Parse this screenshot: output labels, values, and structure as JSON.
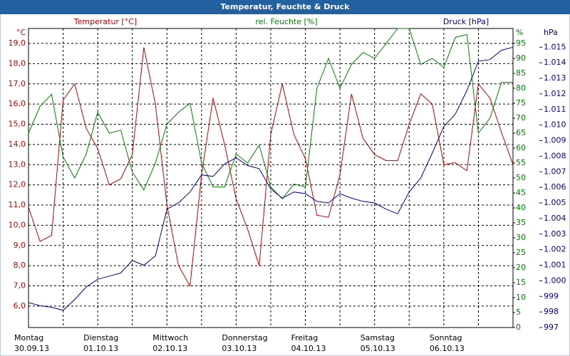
{
  "chart_data": {
    "type": "line",
    "title": "Temperatur, Feuchte & Druck",
    "ylabel": "Temperatur [°C]",
    "yunit": "°C",
    "y2label": "rel. Feuchte [%]",
    "y2unit": "%",
    "y3label": "Druck [hPa]",
    "y3unit": "hPa",
    "x": [
      0,
      4,
      8,
      12,
      16,
      20,
      24,
      28,
      32,
      36,
      40,
      44,
      48,
      52,
      56,
      60,
      64,
      68,
      72,
      76,
      80,
      84,
      88,
      92,
      96,
      100,
      104,
      108,
      112,
      116,
      120,
      124,
      128,
      132,
      136,
      140,
      144,
      148,
      152,
      156,
      160,
      164,
      168
    ],
    "xlim": [
      0,
      168
    ],
    "xticks": [
      {
        "value": 0,
        "label": "Montag",
        "date": "30.09.13"
      },
      {
        "value": 24,
        "label": "Dienstag",
        "date": "01.10.13"
      },
      {
        "value": 48,
        "label": "Mittwoch",
        "date": "02.10.13"
      },
      {
        "value": 72,
        "label": "Donnerstag",
        "date": "03.10.13"
      },
      {
        "value": 96,
        "label": "Freitag",
        "date": "04.10.13"
      },
      {
        "value": 120,
        "label": "Samstag",
        "date": "05.10.13"
      },
      {
        "value": 144,
        "label": "Sonntag",
        "date": "06.10.13"
      }
    ],
    "xminor": [
      12,
      36,
      60,
      84,
      108,
      132,
      156
    ],
    "ylim": [
      4.94,
      19.74
    ],
    "yticks": [
      {
        "value": 6,
        "label": "6,0"
      },
      {
        "value": 7,
        "label": "7,0"
      },
      {
        "value": 8,
        "label": "8,0"
      },
      {
        "value": 9,
        "label": "9,0"
      },
      {
        "value": 10,
        "label": "10,0"
      },
      {
        "value": 11,
        "label": "11,0"
      },
      {
        "value": 12,
        "label": "12,0"
      },
      {
        "value": 13,
        "label": "13,0"
      },
      {
        "value": 14,
        "label": "14,0"
      },
      {
        "value": 15,
        "label": "15,0"
      },
      {
        "value": 16,
        "label": "16,0"
      },
      {
        "value": 17,
        "label": "17,0"
      },
      {
        "value": 18,
        "label": "18,0"
      },
      {
        "value": 19,
        "label": "19,0"
      }
    ],
    "y2lim": [
      0,
      100
    ],
    "y2ticks": [
      0,
      5,
      10,
      15,
      20,
      25,
      30,
      35,
      40,
      45,
      50,
      55,
      60,
      65,
      70,
      75,
      80,
      85,
      90,
      95
    ],
    "y3lim": [
      997,
      1016.2
    ],
    "y3ticks": [
      997,
      998,
      999,
      {
        "value": 1000,
        "label": "1.000"
      },
      {
        "value": 1001,
        "label": "1.001"
      },
      {
        "value": 1002,
        "label": "1.002"
      },
      {
        "value": 1003,
        "label": "1.003"
      },
      {
        "value": 1004,
        "label": "1.004"
      },
      {
        "value": 1005,
        "label": "1.005"
      },
      {
        "value": 1006,
        "label": "1.006"
      },
      {
        "value": 1007,
        "label": "1.007"
      },
      {
        "value": 1008,
        "label": "1.008"
      },
      {
        "value": 1009,
        "label": "1.009"
      },
      {
        "value": 1010,
        "label": "1.010"
      },
      {
        "value": 1011,
        "label": "1.011"
      },
      {
        "value": 1012,
        "label": "1.012"
      },
      {
        "value": 1013,
        "label": "1.013"
      },
      {
        "value": 1014,
        "label": "1.014"
      },
      {
        "value": 1015,
        "label": "1.015"
      }
    ],
    "grid": true,
    "series": [
      {
        "name": "Temperatur",
        "color": "#c00000",
        "axis": "y",
        "values": [
          10.9,
          9.2,
          9.5,
          16.2,
          17.0,
          14.8,
          13.8,
          12.0,
          12.3,
          13.5,
          18.8,
          16.0,
          11.0,
          8.0,
          7.0,
          12.5,
          16.3,
          14.0,
          11.3,
          9.8,
          8.0,
          14.5,
          17.0,
          14.5,
          13.3,
          10.5,
          10.4,
          12.5,
          16.5,
          14.3,
          13.5,
          13.2,
          13.2,
          15.0,
          16.5,
          16.0,
          13.0,
          13.1,
          12.7,
          17.0,
          16.3,
          14.6,
          13.0
        ]
      },
      {
        "name": "Feuchte",
        "color": "#008000",
        "axis": "y2",
        "values": [
          65,
          74,
          78,
          57,
          50,
          58,
          72,
          65,
          66,
          52,
          46,
          55,
          68,
          72,
          75,
          55,
          47,
          47,
          58,
          55,
          61,
          47,
          43,
          48,
          47,
          80,
          90,
          80,
          88,
          92,
          90,
          95,
          100,
          100,
          88,
          90,
          87,
          97,
          98,
          65,
          70,
          82,
          82
        ]
      },
      {
        "name": "Druck",
        "color": "#000090",
        "axis": "y3",
        "values": [
          998.6,
          998.4,
          998.3,
          998.1,
          998.8,
          999.6,
          1000.1,
          1000.3,
          1000.5,
          1001.3,
          1001.0,
          1001.6,
          1004.6,
          1005.0,
          1005.7,
          1006.8,
          1006.7,
          1007.5,
          1007.9,
          1007.4,
          1007.2,
          1005.9,
          1005.3,
          1005.7,
          1005.6,
          1005.1,
          1005.0,
          1005.6,
          1005.3,
          1005.1,
          1005.0,
          1004.6,
          1004.3,
          1005.7,
          1006.6,
          1008.2,
          1009.9,
          1010.7,
          1012.2,
          1014.1,
          1014.2,
          1014.8,
          1015.0
        ]
      }
    ]
  }
}
